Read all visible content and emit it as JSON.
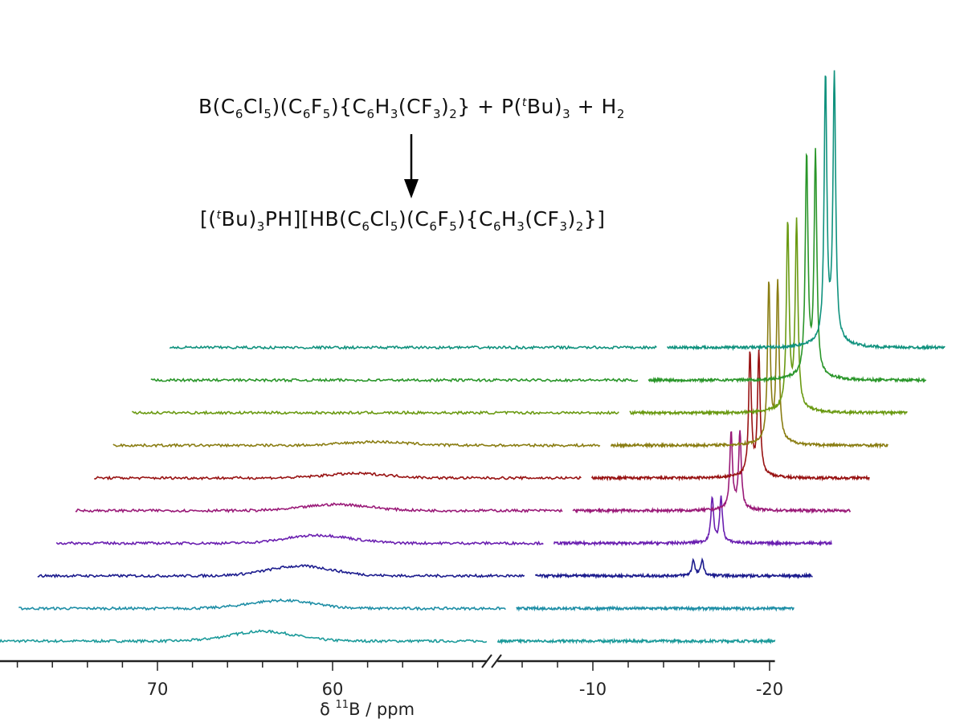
{
  "reaction": {
    "reactants": [
      {
        "t": "B(C"
      },
      {
        "sub": "6"
      },
      {
        "t": "Cl"
      },
      {
        "sub": "5"
      },
      {
        "t": ")(C"
      },
      {
        "sub": "6"
      },
      {
        "t": "F"
      },
      {
        "sub": "5"
      },
      {
        "t": "){C"
      },
      {
        "sub": "6"
      },
      {
        "t": "H"
      },
      {
        "sub": "3"
      },
      {
        "t": "(CF"
      },
      {
        "sub": "3"
      },
      {
        "t": ")"
      },
      {
        "sub": "2"
      },
      {
        "t": "} + P("
      },
      {
        "sup": "t"
      },
      {
        "t": "Bu)"
      },
      {
        "sub": "3"
      },
      {
        "t": " + H"
      },
      {
        "sub": "2"
      }
    ],
    "products": [
      {
        "t": "[("
      },
      {
        "sup": "t"
      },
      {
        "t": "Bu)"
      },
      {
        "sub": "3"
      },
      {
        "t": "PH][HB(C"
      },
      {
        "sub": "6"
      },
      {
        "t": "Cl"
      },
      {
        "sub": "5"
      },
      {
        "t": ")(C"
      },
      {
        "sub": "6"
      },
      {
        "t": "F"
      },
      {
        "sub": "5"
      },
      {
        "t": "){C"
      },
      {
        "sub": "6"
      },
      {
        "t": "H"
      },
      {
        "sub": "3"
      },
      {
        "t": "(CF"
      },
      {
        "sub": "3"
      },
      {
        "t": ")"
      },
      {
        "sub": "2"
      },
      {
        "t": "}]"
      }
    ],
    "arrow": "down-arrow"
  },
  "chart_data": {
    "type": "line",
    "subtype": "stacked NMR spectra (waterfall)",
    "xlabel": "δ ¹¹B / ppm",
    "xlabel_parts": {
      "delta": "δ ",
      "sup": "11",
      "rest": "B / ppm"
    },
    "x_axis_reversed": true,
    "x_axis_break": true,
    "x_segments": [
      [
        79,
        51.2
      ],
      [
        -4.6,
        -20.3
      ]
    ],
    "tick_labels": [
      "70",
      "60",
      "-10",
      "-20"
    ],
    "tick_values": [
      70,
      60,
      -10,
      -20
    ],
    "minor_tick_step": 2,
    "grid": false,
    "legend": "none",
    "broad_signal_ppm": 64,
    "doublet_ppm": [
      -13.55,
      -14.05
    ],
    "series": [
      {
        "color": "#1b9a9a",
        "broad_intensity": 0.11,
        "doublet_intensity": 0.0
      },
      {
        "color": "#1e8ea6",
        "broad_intensity": 0.09,
        "doublet_intensity": 0.0
      },
      {
        "color": "#1c1c8e",
        "broad_intensity": 0.11,
        "doublet_intensity": 0.06
      },
      {
        "color": "#6a1fb0",
        "broad_intensity": 0.09,
        "doublet_intensity": 0.17
      },
      {
        "color": "#9a1a78",
        "broad_intensity": 0.07,
        "doublet_intensity": 0.29
      },
      {
        "color": "#981212",
        "broad_intensity": 0.05,
        "doublet_intensity": 0.46
      },
      {
        "color": "#8a7d12",
        "broad_intensity": 0.04,
        "doublet_intensity": 0.6
      },
      {
        "color": "#6a9a12",
        "broad_intensity": 0.0,
        "doublet_intensity": 0.7
      },
      {
        "color": "#2a962a",
        "broad_intensity": 0.0,
        "doublet_intensity": 0.83
      },
      {
        "color": "#10927e",
        "broad_intensity": 0.0,
        "doublet_intensity": 1.0
      }
    ]
  }
}
